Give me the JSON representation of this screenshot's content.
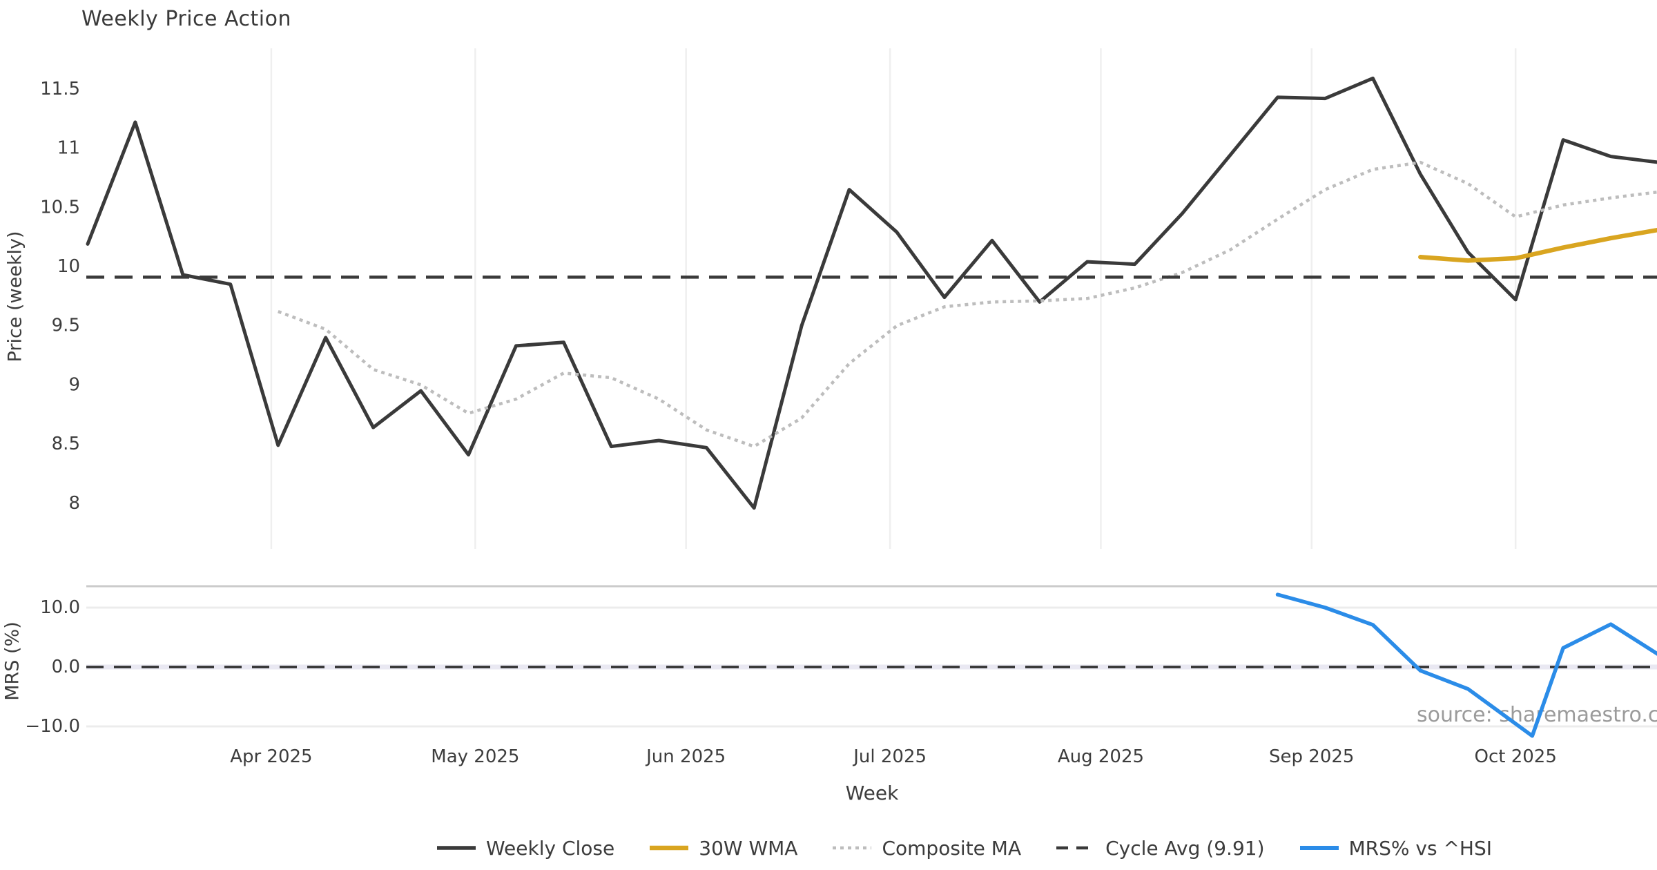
{
  "title": "Weekly Price Action",
  "axes": {
    "price_label": "Price (weekly)",
    "mrs_label": "MRS (%)",
    "x_label": "Week",
    "price_ticks": [
      8,
      8.5,
      9,
      9.5,
      10,
      10.5,
      11,
      11.5
    ],
    "price_tick_labels": [
      "8",
      "8.5",
      "9",
      "9.5",
      "10",
      "10.5",
      "11",
      "11.5"
    ],
    "mrs_ticks": [
      10.0,
      0.0,
      -10.0
    ],
    "mrs_tick_labels": [
      "10.0",
      "0.0",
      "−10.0"
    ]
  },
  "source_note": "source: sharemaestro.com",
  "legend": {
    "items": [
      {
        "key": "weekly-close",
        "label": "Weekly Close"
      },
      {
        "key": "wma-30w",
        "label": "30W WMA"
      },
      {
        "key": "composite-ma",
        "label": "Composite MA"
      },
      {
        "key": "cycle-avg",
        "label": "Cycle Avg (9.91)"
      },
      {
        "key": "mrs",
        "label": "MRS% vs ^HSI"
      }
    ]
  },
  "chart_data": {
    "type": "line",
    "title": "Weekly Price Action",
    "xlabel": "Week",
    "ylabel_top": "Price (weekly)",
    "ylabel_bottom": "MRS (%)",
    "price_ylim": [
      7.56,
      11.87
    ],
    "mrs_ylim": [
      -13.4,
      13.6
    ],
    "grid": "vertical-months-top-panel, horizontal-bottom-panel",
    "legend_position": "bottom-center",
    "x": [
      "2025-03-05",
      "2025-03-12",
      "2025-03-19",
      "2025-03-26",
      "2025-04-02",
      "2025-04-09",
      "2025-04-16",
      "2025-04-23",
      "2025-04-30",
      "2025-05-07",
      "2025-05-14",
      "2025-05-21",
      "2025-05-28",
      "2025-06-04",
      "2025-06-11",
      "2025-06-18",
      "2025-06-25",
      "2025-07-02",
      "2025-07-09",
      "2025-07-16",
      "2025-07-23",
      "2025-07-30",
      "2025-08-06",
      "2025-08-13",
      "2025-08-20",
      "2025-08-27",
      "2025-09-03",
      "2025-09-10",
      "2025-09-17",
      "2025-09-24",
      "2025-10-01",
      "2025-10-08",
      "2025-10-15",
      "2025-10-22"
    ],
    "months": [
      {
        "label": "Apr 2025",
        "date": "2025-04-01"
      },
      {
        "label": "May 2025",
        "date": "2025-05-01"
      },
      {
        "label": "Jun 2025",
        "date": "2025-06-01"
      },
      {
        "label": "Jul 2025",
        "date": "2025-07-01"
      },
      {
        "label": "Aug 2025",
        "date": "2025-08-01"
      },
      {
        "label": "Sep 2025",
        "date": "2025-09-01"
      },
      {
        "label": "Oct 2025",
        "date": "2025-10-01"
      }
    ],
    "cycle_avg": 9.91,
    "series": [
      {
        "key": "weekly-close",
        "name": "Weekly Close",
        "axis": "price",
        "color": "#3A3A3A",
        "style": "solid",
        "width": 5,
        "values": [
          10.19,
          11.22,
          9.93,
          9.85,
          8.49,
          9.4,
          8.64,
          8.95,
          8.41,
          9.33,
          9.36,
          8.48,
          8.53,
          8.47,
          7.96,
          9.5,
          10.65,
          10.29,
          9.74,
          10.22,
          9.7,
          10.04,
          10.02,
          10.45,
          10.94,
          11.43,
          11.42,
          11.59,
          10.78,
          10.12,
          9.72,
          11.07,
          10.93,
          10.88
        ]
      },
      {
        "key": "wma-30w",
        "name": "30W WMA",
        "axis": "price",
        "color": "#D9A520",
        "style": "solid",
        "width": 6.5,
        "values": [
          null,
          null,
          null,
          null,
          null,
          null,
          null,
          null,
          null,
          null,
          null,
          null,
          null,
          null,
          null,
          null,
          null,
          null,
          null,
          null,
          null,
          null,
          null,
          null,
          null,
          null,
          null,
          null,
          10.08,
          10.05,
          10.07,
          10.16,
          10.24,
          10.31
        ]
      },
      {
        "key": "composite-ma",
        "name": "Composite MA",
        "axis": "price",
        "color": "#BDBDBD",
        "style": "dotted",
        "width": 4.5,
        "values": [
          null,
          null,
          null,
          null,
          9.62,
          9.47,
          9.13,
          9.0,
          8.76,
          8.88,
          9.1,
          9.06,
          8.88,
          8.62,
          8.48,
          8.72,
          9.18,
          9.5,
          9.66,
          9.7,
          9.71,
          9.73,
          9.82,
          9.95,
          10.14,
          10.4,
          10.65,
          10.82,
          10.88,
          10.7,
          10.42,
          10.52,
          10.58,
          10.63
        ]
      },
      {
        "key": "cycle-avg",
        "name": "Cycle Avg (9.91)",
        "axis": "price",
        "color": "#3A3A3A",
        "style": "dashed",
        "width": 4.5,
        "constant": 9.91
      },
      {
        "key": "mrs",
        "name": "MRS% vs ^HSI",
        "axis": "mrs",
        "color": "#2B8CE8",
        "style": "solid",
        "width": 5.5,
        "points": [
          [
            25,
            12.2
          ],
          [
            26,
            10.0
          ],
          [
            27,
            7.1
          ],
          [
            28,
            -0.6
          ],
          [
            29,
            -3.7
          ],
          [
            30.35,
            -11.6
          ],
          [
            31,
            3.2
          ],
          [
            32,
            7.2
          ],
          [
            33,
            2.1
          ]
        ]
      }
    ],
    "mrs_zero_line": 0.0,
    "mrs_gridlines": [
      10.0,
      -10.0
    ]
  }
}
